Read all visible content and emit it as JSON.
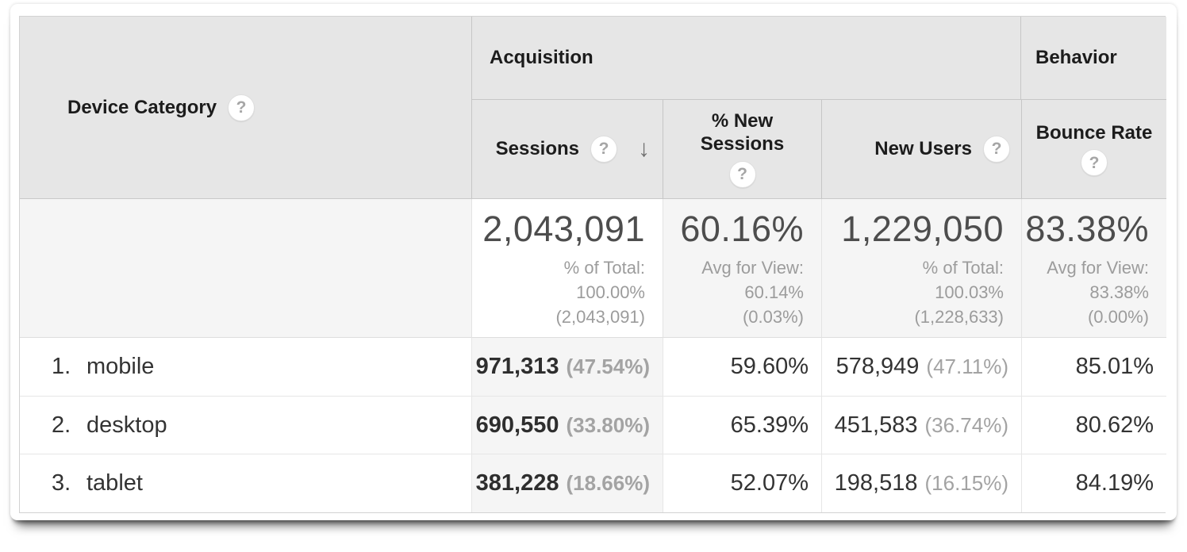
{
  "icons": {
    "help": "?",
    "sort_desc": "↓"
  },
  "colors": {
    "header_bg": "#e6e6e6",
    "sorted_column_bg": "#f5f5f5",
    "summary_bg": "#f5f5f5",
    "body_text": "#333333",
    "muted_text": "#9c9c9c"
  },
  "header": {
    "dimension": "Device Category",
    "groups": {
      "acquisition": "Acquisition",
      "behavior": "Behavior"
    },
    "columns": {
      "sessions": "Sessions",
      "new_sessions_line1": "% New",
      "new_sessions_line2": "Sessions",
      "new_users": "New Users",
      "bounce_rate": "Bounce Rate"
    }
  },
  "summary": {
    "sessions": {
      "value": "2,043,091",
      "line1": "% of Total:",
      "line2": "100.00%",
      "line3": "(2,043,091)"
    },
    "new_sessions": {
      "value": "60.16%",
      "line1": "Avg for View:",
      "line2": "60.14%",
      "line3": "(0.03%)"
    },
    "new_users": {
      "value": "1,229,050",
      "line1": "% of Total:",
      "line2": "100.03%",
      "line3": "(1,228,633)"
    },
    "bounce_rate": {
      "value": "83.38%",
      "line1": "Avg for View:",
      "line2": "83.38%",
      "line3": "(0.00%)"
    }
  },
  "rows": [
    {
      "rank": "1.",
      "label": "mobile",
      "sessions": "971,313",
      "sessions_pct": "(47.54%)",
      "new_sessions": "59.60%",
      "new_users": "578,949",
      "new_users_pct": "(47.11%)",
      "bounce_rate": "85.01%"
    },
    {
      "rank": "2.",
      "label": "desktop",
      "sessions": "690,550",
      "sessions_pct": "(33.80%)",
      "new_sessions": "65.39%",
      "new_users": "451,583",
      "new_users_pct": "(36.74%)",
      "bounce_rate": "80.62%"
    },
    {
      "rank": "3.",
      "label": "tablet",
      "sessions": "381,228",
      "sessions_pct": "(18.66%)",
      "new_sessions": "52.07%",
      "new_users": "198,518",
      "new_users_pct": "(16.15%)",
      "bounce_rate": "84.19%"
    }
  ]
}
